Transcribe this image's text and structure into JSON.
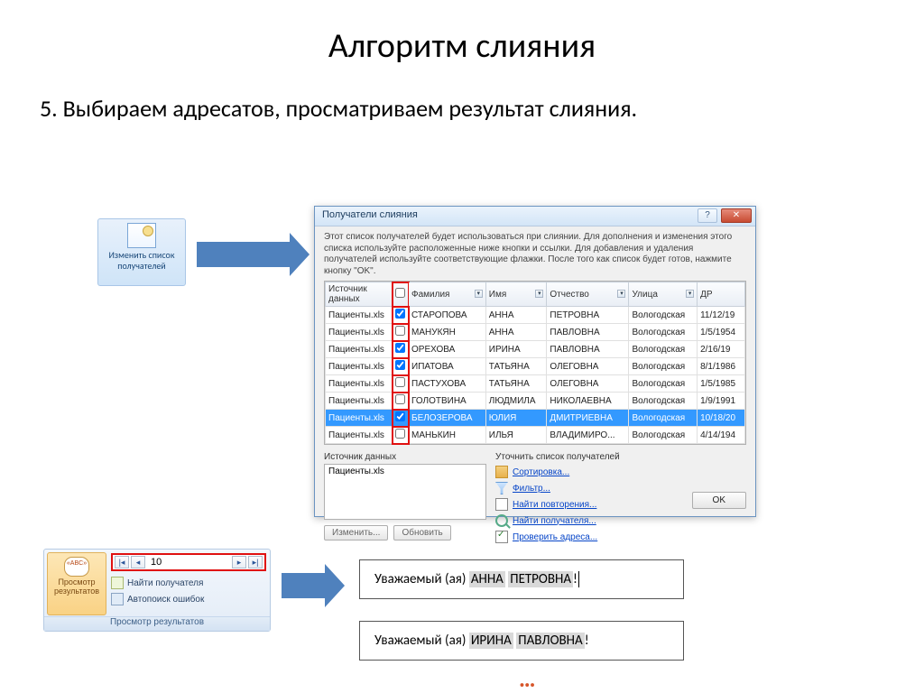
{
  "slide": {
    "title": "Алгоритм слияния",
    "subtitle": "5. Выбираем адресатов, просматриваем результат слияния."
  },
  "ribbon_edit_list": {
    "label": "Изменить список получателей"
  },
  "dialog": {
    "title": "Получатели слияния",
    "instructions": "Этот список получателей будет использоваться при слиянии. Для дополнения и изменения этого списка используйте расположенные ниже кнопки и ссылки. Для добавления и удаления получателей используйте соответствующие флажки. После того как список будет готов, нажмите кнопку \"OK\".",
    "columns": {
      "source": "Источник данных",
      "surname": "Фамилия",
      "name": "Имя",
      "patronymic": "Отчество",
      "street": "Улица",
      "dob": "ДР"
    },
    "rows": [
      {
        "src": "Пациенты.xls",
        "ck": true,
        "f": "СТАРОПОВА",
        "i": "АННА",
        "o": "ПЕТРОВНА",
        "u": "Вологодская",
        "d": "11/12/19"
      },
      {
        "src": "Пациенты.xls",
        "ck": false,
        "f": "МАНУКЯН",
        "i": "АННА",
        "o": "ПАВЛОВНА",
        "u": "Вологодская",
        "d": "1/5/1954"
      },
      {
        "src": "Пациенты.xls",
        "ck": true,
        "f": "ОРЕХОВА",
        "i": "ИРИНА",
        "o": "ПАВЛОВНА",
        "u": "Вологодская",
        "d": "2/16/19"
      },
      {
        "src": "Пациенты.xls",
        "ck": true,
        "f": "ИПАТОВА",
        "i": "ТАТЬЯНА",
        "o": "ОЛЕГОВНА",
        "u": "Вологодская",
        "d": "8/1/1986"
      },
      {
        "src": "Пациенты.xls",
        "ck": false,
        "f": "ПАСТУХОВА",
        "i": "ТАТЬЯНА",
        "o": "ОЛЕГОВНА",
        "u": "Вологодская",
        "d": "1/5/1985"
      },
      {
        "src": "Пациенты.xls",
        "ck": false,
        "f": "ГОЛОТВИНА",
        "i": "ЛЮДМИЛА",
        "o": "НИКОЛАЕВНА",
        "u": "Вологодская",
        "d": "1/9/1991"
      },
      {
        "src": "Пациенты.xls",
        "ck": true,
        "f": "БЕЛОЗЕРОВА",
        "i": "ЮЛИЯ",
        "o": "ДМИТРИЕВНА",
        "u": "Вологодская",
        "d": "10/18/20",
        "sel": true
      },
      {
        "src": "Пациенты.xls",
        "ck": false,
        "f": "МАНЬКИН",
        "i": "ИЛЬЯ",
        "o": "ВЛАДИМИРО...",
        "u": "Вологодская",
        "d": "4/14/194"
      }
    ],
    "src_label": "Источник данных",
    "src_item": "Пациенты.xls",
    "btn_edit": "Изменить...",
    "btn_refresh": "Обновить",
    "refine_label": "Уточнить список получателей",
    "link_sort": "Сортировка...",
    "link_filter": "Фильтр...",
    "link_dup": "Найти повторения...",
    "link_find": "Найти получателя...",
    "link_check": "Проверить адреса...",
    "btn_ok": "OK"
  },
  "ribbon_preview": {
    "group_title": "Просмотр результатов",
    "button_label": "Просмотр результатов",
    "record_number": "10",
    "find_recipient": "Найти получателя",
    "auto_check": "Автопоиск ошибок"
  },
  "results": {
    "prefix": "Уважаемый (ая) ",
    "r1_name": "АННА",
    "r1_patr": "ПЕТРОВНА",
    "r2_name": "ИРИНА",
    "r2_patr": "ПАВЛОВНА",
    "excl": "!"
  },
  "ellipsis": "…"
}
